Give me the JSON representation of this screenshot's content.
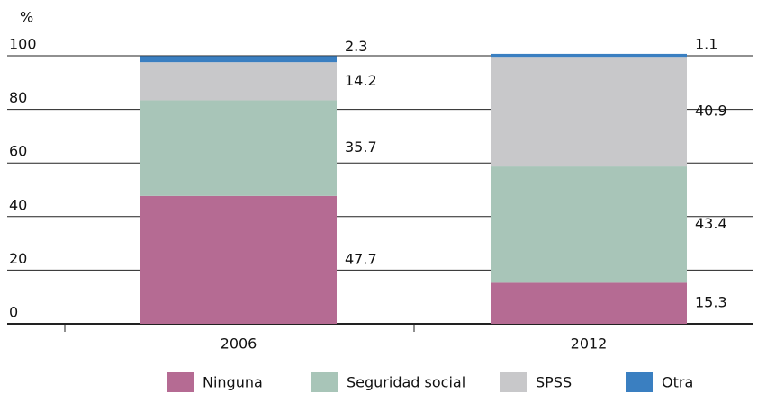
{
  "chart_data": {
    "type": "stacked_bar",
    "y_label": "%",
    "categories": [
      "2006",
      "2012"
    ],
    "series": [
      {
        "name": "Ninguna",
        "color": "#b56b93",
        "values": [
          47.7,
          15.3
        ]
      },
      {
        "name": "Seguridad social",
        "color": "#a8c5b8",
        "values": [
          35.7,
          43.4
        ]
      },
      {
        "name": "SPSS",
        "color": "#c8c8ca",
        "values": [
          14.2,
          40.9
        ]
      },
      {
        "name": "Otra",
        "color": "#3a7fc1",
        "values": [
          2.3,
          1.1
        ]
      }
    ],
    "ylim": [
      0,
      100
    ],
    "yticks": [
      0,
      20,
      40,
      60,
      80,
      100
    ],
    "grid": true,
    "legend": "bottom"
  }
}
